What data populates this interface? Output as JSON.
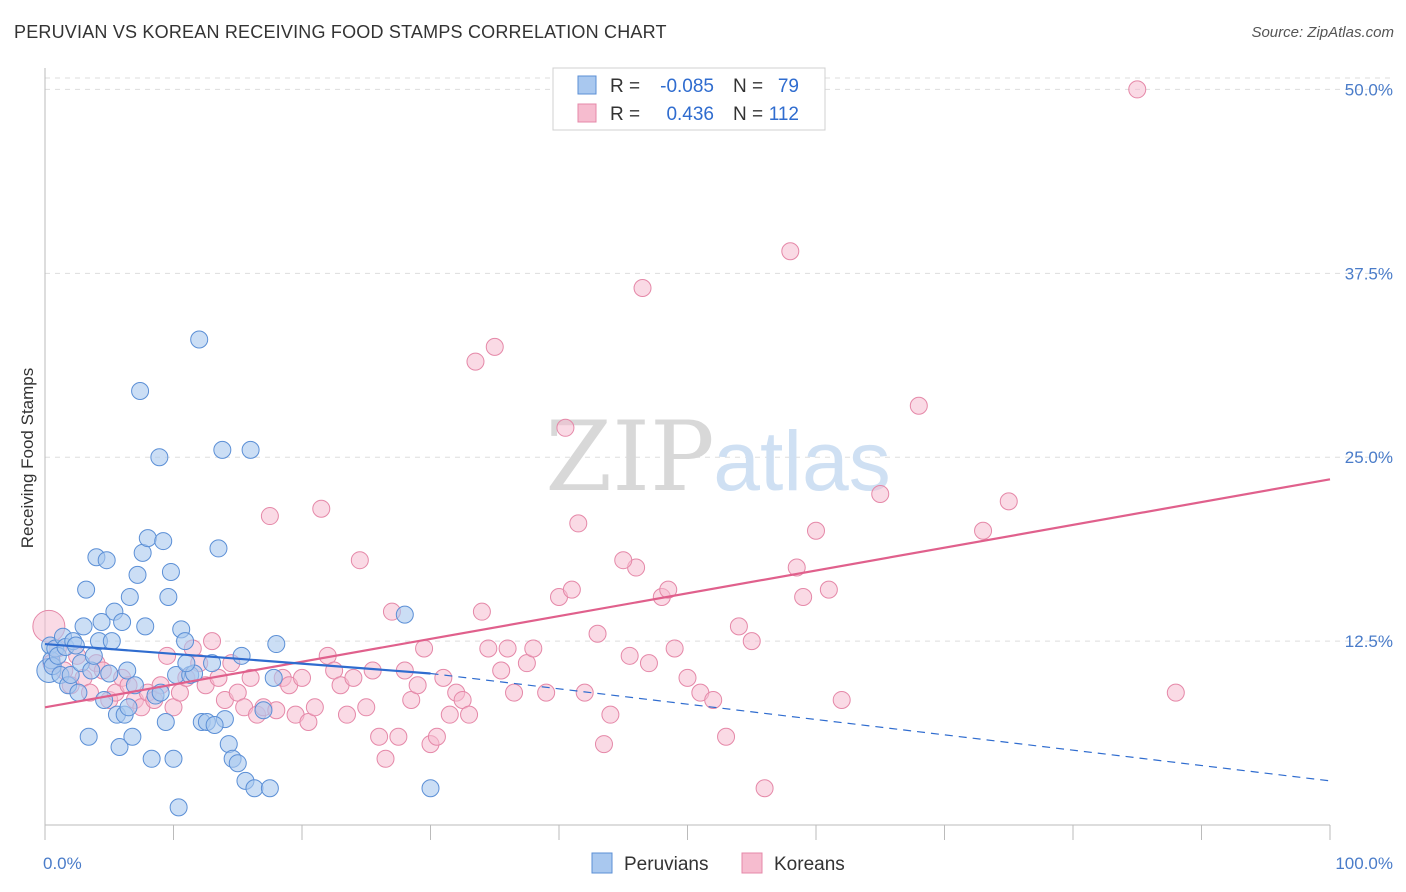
{
  "title": "PERUVIAN VS KOREAN RECEIVING FOOD STAMPS CORRELATION CHART",
  "source": "Source: ZipAtlas.com",
  "watermark": {
    "zip": "ZIP",
    "atlas": "atlas"
  },
  "colors": {
    "peruvian_fill": "#a9c8ef",
    "peruvian_stroke": "#5b8fd6",
    "peruvian_line": "#2f6ccf",
    "korean_fill": "#f6bccf",
    "korean_stroke": "#e588a8",
    "korean_line": "#e0608c",
    "tick_text": "#4a7cc9",
    "grid": "#dddddd"
  },
  "legend": {
    "rows": [
      {
        "r_label": "R =",
        "r_value": "-0.085",
        "n_label": "N =",
        "n_value": "79"
      },
      {
        "r_label": "R =",
        "r_value": "0.436",
        "n_label": "N =",
        "n_value": "112"
      }
    ]
  },
  "chart_data": {
    "type": "scatter",
    "title": "PERUVIAN VS KOREAN RECEIVING FOOD STAMPS CORRELATION CHART",
    "xlabel": "",
    "ylabel": "Receiving Food Stamps",
    "xlim": [
      0,
      100
    ],
    "ylim": [
      0,
      52
    ],
    "x_tick_labels": [
      "0.0%",
      "100.0%"
    ],
    "y_ticks": [
      12.5,
      25.0,
      37.5,
      50.0
    ],
    "y_tick_labels": [
      "12.5%",
      "25.0%",
      "37.5%",
      "50.0%"
    ],
    "grid": true,
    "legend_position": "bottom-center",
    "series": [
      {
        "name": "Peruvians",
        "trend": {
          "x": [
            0,
            30,
            100
          ],
          "y": [
            12.3,
            10.3,
            3.0
          ],
          "solid_until_x": 30
        },
        "points": [
          [
            0.3,
            10.5
          ],
          [
            0.4,
            12.2
          ],
          [
            0.5,
            11.2
          ],
          [
            0.6,
            10.8
          ],
          [
            0.8,
            12.0
          ],
          [
            1.0,
            11.5
          ],
          [
            1.2,
            10.2
          ],
          [
            1.4,
            12.8
          ],
          [
            1.6,
            12.1
          ],
          [
            1.8,
            9.5
          ],
          [
            2.0,
            10.2
          ],
          [
            2.2,
            12.5
          ],
          [
            2.4,
            12.2
          ],
          [
            2.6,
            9.0
          ],
          [
            2.8,
            11.0
          ],
          [
            3.0,
            13.5
          ],
          [
            3.2,
            16.0
          ],
          [
            3.4,
            6.0
          ],
          [
            3.6,
            10.5
          ],
          [
            3.8,
            11.5
          ],
          [
            4.0,
            18.2
          ],
          [
            4.2,
            12.5
          ],
          [
            4.4,
            13.8
          ],
          [
            4.6,
            8.5
          ],
          [
            4.8,
            18.0
          ],
          [
            5.0,
            10.3
          ],
          [
            5.2,
            12.5
          ],
          [
            5.4,
            14.5
          ],
          [
            5.6,
            7.5
          ],
          [
            5.8,
            5.3
          ],
          [
            6.0,
            13.8
          ],
          [
            6.2,
            7.5
          ],
          [
            6.4,
            10.5
          ],
          [
            6.6,
            15.5
          ],
          [
            6.8,
            6.0
          ],
          [
            7.0,
            9.5
          ],
          [
            7.2,
            17.0
          ],
          [
            7.4,
            29.5
          ],
          [
            7.6,
            18.5
          ],
          [
            7.8,
            13.5
          ],
          [
            8.0,
            19.5
          ],
          [
            8.3,
            4.5
          ],
          [
            8.6,
            8.8
          ],
          [
            8.9,
            25.0
          ],
          [
            9.2,
            19.3
          ],
          [
            9.4,
            7.0
          ],
          [
            9.6,
            15.5
          ],
          [
            9.8,
            17.2
          ],
          [
            10.0,
            4.5
          ],
          [
            10.2,
            10.2
          ],
          [
            10.4,
            1.2
          ],
          [
            10.6,
            13.3
          ],
          [
            10.9,
            12.5
          ],
          [
            11.3,
            10.2
          ],
          [
            11.6,
            10.3
          ],
          [
            12.0,
            33.0
          ],
          [
            12.2,
            7.0
          ],
          [
            12.6,
            7.0
          ],
          [
            13.0,
            11.0
          ],
          [
            13.5,
            18.8
          ],
          [
            13.8,
            25.5
          ],
          [
            14.0,
            7.2
          ],
          [
            14.3,
            5.5
          ],
          [
            14.6,
            4.5
          ],
          [
            15.0,
            4.2
          ],
          [
            15.3,
            11.5
          ],
          [
            15.6,
            3.0
          ],
          [
            16.0,
            25.5
          ],
          [
            16.3,
            2.5
          ],
          [
            17.0,
            7.8
          ],
          [
            17.5,
            2.5
          ],
          [
            18.0,
            12.3
          ],
          [
            17.8,
            10.0
          ],
          [
            9.0,
            9.0
          ],
          [
            6.5,
            8.0
          ],
          [
            30.0,
            2.5
          ],
          [
            28.0,
            14.3
          ],
          [
            11.0,
            11.0
          ],
          [
            13.2,
            6.8
          ]
        ]
      },
      {
        "name": "Koreans",
        "trend": {
          "x": [
            0,
            100
          ],
          "y": [
            8.0,
            23.5
          ]
        },
        "points": [
          [
            0.3,
            13.5
          ],
          [
            0.5,
            11.0
          ],
          [
            1.0,
            12.0
          ],
          [
            1.5,
            10.5
          ],
          [
            2.0,
            9.5
          ],
          [
            2.5,
            11.5
          ],
          [
            3.0,
            10.0
          ],
          [
            3.5,
            9.0
          ],
          [
            4.0,
            11.0
          ],
          [
            4.5,
            10.5
          ],
          [
            5.0,
            8.5
          ],
          [
            5.5,
            9.0
          ],
          [
            6.0,
            10.0
          ],
          [
            6.5,
            9.5
          ],
          [
            7.0,
            8.5
          ],
          [
            7.5,
            8.0
          ],
          [
            8.0,
            9.0
          ],
          [
            8.5,
            8.5
          ],
          [
            9.0,
            9.5
          ],
          [
            9.5,
            11.5
          ],
          [
            10.0,
            8.0
          ],
          [
            10.5,
            9.0
          ],
          [
            11.0,
            10.0
          ],
          [
            11.5,
            12.0
          ],
          [
            12.0,
            11.0
          ],
          [
            12.5,
            9.5
          ],
          [
            13.0,
            12.5
          ],
          [
            13.5,
            10.0
          ],
          [
            14.0,
            8.5
          ],
          [
            14.5,
            11.0
          ],
          [
            15.0,
            9.0
          ],
          [
            15.5,
            8.0
          ],
          [
            16.0,
            10.0
          ],
          [
            16.5,
            7.5
          ],
          [
            17.0,
            8.0
          ],
          [
            17.5,
            21.0
          ],
          [
            18.0,
            7.8
          ],
          [
            18.5,
            10.0
          ],
          [
            19.0,
            9.5
          ],
          [
            19.5,
            7.5
          ],
          [
            20.0,
            10.0
          ],
          [
            20.5,
            7.0
          ],
          [
            21.0,
            8.0
          ],
          [
            21.5,
            21.5
          ],
          [
            22.0,
            11.5
          ],
          [
            22.5,
            10.5
          ],
          [
            23.0,
            9.5
          ],
          [
            23.5,
            7.5
          ],
          [
            24.0,
            10.0
          ],
          [
            24.5,
            18.0
          ],
          [
            25.0,
            8.0
          ],
          [
            25.5,
            10.5
          ],
          [
            26.0,
            6.0
          ],
          [
            26.5,
            4.5
          ],
          [
            27.0,
            14.5
          ],
          [
            27.5,
            6.0
          ],
          [
            28.0,
            10.5
          ],
          [
            28.5,
            8.5
          ],
          [
            29.0,
            9.5
          ],
          [
            29.5,
            12.0
          ],
          [
            30.0,
            5.5
          ],
          [
            30.5,
            6.0
          ],
          [
            31.0,
            10.0
          ],
          [
            31.5,
            7.5
          ],
          [
            32.0,
            9.0
          ],
          [
            32.5,
            8.5
          ],
          [
            33.0,
            7.5
          ],
          [
            33.5,
            31.5
          ],
          [
            34.0,
            14.5
          ],
          [
            34.5,
            12.0
          ],
          [
            35.0,
            32.5
          ],
          [
            35.5,
            10.5
          ],
          [
            36.0,
            12.0
          ],
          [
            36.5,
            9.0
          ],
          [
            37.5,
            11.0
          ],
          [
            38.0,
            12.0
          ],
          [
            39.0,
            9.0
          ],
          [
            40.0,
            15.5
          ],
          [
            40.5,
            27.0
          ],
          [
            41.0,
            16.0
          ],
          [
            41.5,
            20.5
          ],
          [
            42.0,
            9.0
          ],
          [
            43.0,
            13.0
          ],
          [
            43.5,
            5.5
          ],
          [
            44.0,
            7.5
          ],
          [
            45.5,
            11.5
          ],
          [
            46.0,
            17.5
          ],
          [
            46.5,
            36.5
          ],
          [
            47.0,
            11.0
          ],
          [
            48.0,
            15.5
          ],
          [
            48.5,
            16.0
          ],
          [
            49.0,
            12.0
          ],
          [
            50.0,
            10.0
          ],
          [
            51.0,
            9.0
          ],
          [
            52.0,
            8.5
          ],
          [
            53.0,
            6.0
          ],
          [
            54.0,
            13.5
          ],
          [
            55.0,
            12.5
          ],
          [
            56.0,
            2.5
          ],
          [
            58.0,
            39.0
          ],
          [
            58.5,
            17.5
          ],
          [
            59.0,
            15.5
          ],
          [
            60.0,
            20.0
          ],
          [
            61.0,
            16.0
          ],
          [
            62.0,
            8.5
          ],
          [
            65.0,
            22.5
          ],
          [
            68.0,
            28.5
          ],
          [
            73.0,
            20.0
          ],
          [
            75.0,
            22.0
          ],
          [
            85.0,
            50.0
          ],
          [
            88.0,
            9.0
          ],
          [
            45.0,
            18.0
          ]
        ]
      }
    ]
  },
  "bottom_legend": [
    {
      "label": "Peruvians"
    },
    {
      "label": "Koreans"
    }
  ]
}
